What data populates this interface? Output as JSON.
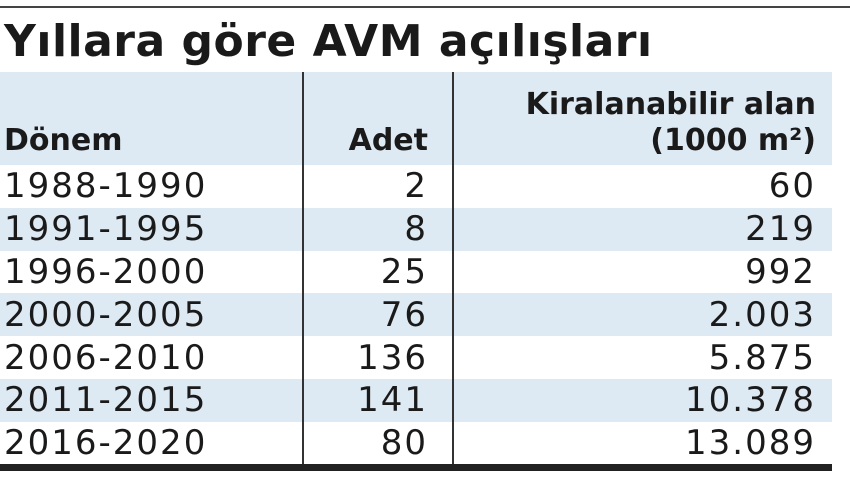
{
  "title": "Yıllara göre AVM açılışları",
  "table": {
    "header": [
      "Dönem",
      "Adet",
      "Kiralanabilir alan (1000 m²)"
    ],
    "rows": [
      [
        "1988-1990",
        "2",
        "60"
      ],
      [
        "1991-1995",
        "8",
        "219"
      ],
      [
        "1996-2000",
        "25",
        "992"
      ],
      [
        "2000-2005",
        "76",
        "2.003"
      ],
      [
        "2006-2010",
        "136",
        "5.875"
      ],
      [
        "2011-2015",
        "141",
        "10.378"
      ],
      [
        "2016-2020",
        "80",
        "13.089"
      ]
    ]
  }
}
